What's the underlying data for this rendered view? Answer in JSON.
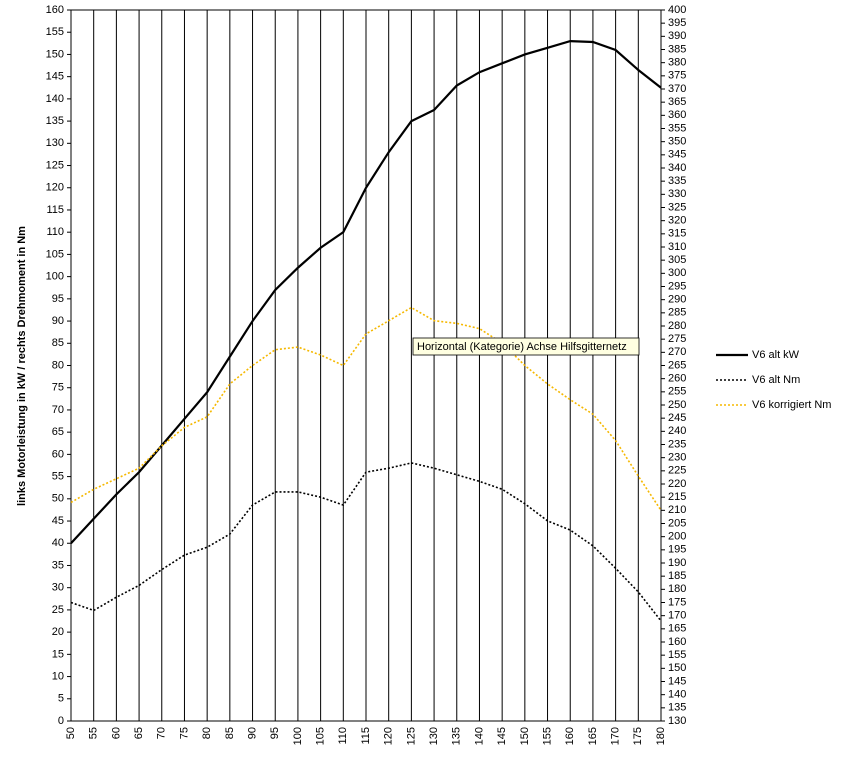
{
  "chart_data": {
    "type": "line",
    "y_label": "links Motorleistung in kW / rechts Drehmoment in Nm",
    "annotation": "Horizontal (Kategorie) Achse Hilfsgitternetz",
    "x": [
      50,
      55,
      60,
      65,
      70,
      75,
      80,
      85,
      90,
      95,
      100,
      105,
      110,
      115,
      120,
      125,
      130,
      135,
      140,
      145,
      150,
      155,
      160,
      165,
      170,
      175,
      180
    ],
    "xlim": [
      50,
      180
    ],
    "xticks": [
      50,
      55,
      60,
      65,
      70,
      75,
      80,
      85,
      90,
      95,
      100,
      105,
      110,
      115,
      120,
      125,
      130,
      135,
      140,
      145,
      150,
      155,
      160,
      165,
      170,
      175,
      180
    ],
    "ylim": [
      0,
      160
    ],
    "yticks": [
      0,
      5,
      10,
      15,
      20,
      25,
      30,
      35,
      40,
      45,
      50,
      55,
      60,
      65,
      70,
      75,
      80,
      85,
      90,
      95,
      100,
      105,
      110,
      115,
      120,
      125,
      130,
      135,
      140,
      145,
      150,
      155,
      160
    ],
    "y2lim": [
      130,
      400
    ],
    "y2ticks": [
      130,
      135,
      140,
      145,
      150,
      155,
      160,
      165,
      170,
      175,
      180,
      185,
      190,
      195,
      200,
      205,
      210,
      215,
      220,
      225,
      230,
      235,
      240,
      245,
      250,
      255,
      260,
      265,
      270,
      275,
      280,
      285,
      290,
      295,
      300,
      305,
      310,
      315,
      320,
      325,
      330,
      335,
      340,
      345,
      350,
      355,
      360,
      365,
      370,
      375,
      380,
      385,
      390,
      395,
      400
    ],
    "grid": true,
    "legend": "right",
    "series": [
      {
        "name": "V6 alt kW",
        "color": "#000000",
        "dash": "solid",
        "values": [
          40,
          45.5,
          51,
          56,
          62,
          68,
          74,
          82,
          90,
          97,
          102,
          106.5,
          110,
          120,
          128,
          135,
          137.5,
          143,
          146,
          148,
          150,
          151.5,
          153,
          152.8,
          151,
          146.5,
          142.5
        ]
      },
      {
        "name": "V6 alt Nm",
        "color": "#000000",
        "dash": "dotted",
        "axis": "y2",
        "values": [
          175,
          172,
          177,
          181.5,
          187.5,
          193,
          196,
          201,
          212,
          217,
          217,
          215,
          212,
          224.5,
          226,
          228,
          226,
          223.5,
          221,
          218,
          212.5,
          206,
          202.5,
          196.5,
          188,
          179,
          168
        ]
      },
      {
        "name": "V6 korrigiert Nm",
        "color": "#f5b800",
        "dash": "dotted",
        "axis": "y2",
        "values": [
          213,
          218,
          222,
          226,
          234.5,
          241.5,
          245.5,
          258,
          265,
          271,
          272,
          269,
          265,
          277,
          282,
          287,
          282,
          281,
          279,
          273.5,
          265,
          258,
          252,
          246.5,
          236.5,
          223,
          210
        ]
      }
    ]
  }
}
